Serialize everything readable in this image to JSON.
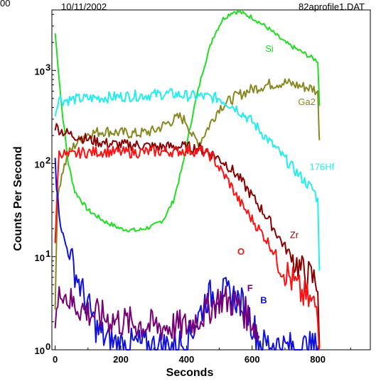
{
  "header": {
    "corner": "00",
    "date": "10/11/2002",
    "filename": "82aprofile1.DAT"
  },
  "chart_data": {
    "type": "line",
    "xlabel": "Seconds",
    "ylabel": "Counts Per Second",
    "xlim": [
      -10,
      960
    ],
    "ylim": [
      0,
      3.65
    ],
    "y_scale": "log",
    "x_ticks": [
      0,
      200,
      400,
      600,
      800
    ],
    "x_tick_labels": [
      "0",
      "200",
      "400",
      "600",
      "800"
    ],
    "y_ticks": [
      0,
      1,
      2,
      3
    ],
    "y_tick_labels_base": [
      "10",
      "10",
      "10",
      "10"
    ],
    "y_tick_labels_exp": [
      "0",
      "1",
      "2",
      "3"
    ],
    "grid": false,
    "series": [
      {
        "name": "Si",
        "color": "#22dd22",
        "label_style": "normal",
        "x": [
          0,
          20,
          40,
          60,
          80,
          100,
          150,
          200,
          250,
          300,
          330,
          360,
          390,
          420,
          450,
          480,
          510,
          540,
          560,
          600,
          650,
          700,
          750,
          800,
          805
        ],
        "y": [
          3.4,
          2.6,
          2.0,
          1.7,
          1.6,
          1.5,
          1.38,
          1.3,
          1.28,
          1.33,
          1.4,
          1.6,
          2.0,
          2.55,
          3.0,
          3.35,
          3.55,
          3.63,
          3.63,
          3.57,
          3.45,
          3.3,
          3.2,
          3.1,
          2.62
        ],
        "label_x": 640,
        "label_y": 3.2
      },
      {
        "name": "Ga2",
        "color": "#888822",
        "label_style": "normal",
        "x": [
          0,
          5,
          10,
          20,
          40,
          60,
          80,
          100,
          150,
          200,
          250,
          300,
          350,
          380,
          400,
          420,
          440,
          460,
          500,
          550,
          600,
          650,
          700,
          750,
          790,
          800,
          805
        ],
        "y": [
          0.5,
          1.4,
          1.7,
          1.9,
          2.1,
          2.2,
          2.28,
          2.32,
          2.35,
          2.33,
          2.32,
          2.35,
          2.45,
          2.5,
          2.45,
          2.28,
          2.23,
          2.35,
          2.6,
          2.72,
          2.8,
          2.85,
          2.87,
          2.83,
          2.8,
          2.75,
          2.25
        ],
        "label_x": 740,
        "label_y": 2.63
      },
      {
        "name": "176Hf",
        "color": "#22eeee",
        "label_style": "normal",
        "x": [
          0,
          10,
          20,
          100,
          200,
          300,
          350,
          400,
          450,
          500,
          550,
          600,
          650,
          700,
          750,
          790,
          800,
          805
        ],
        "y": [
          2.52,
          2.72,
          2.68,
          2.7,
          2.72,
          2.74,
          2.75,
          2.73,
          2.72,
          2.7,
          2.6,
          2.45,
          2.25,
          2.05,
          1.85,
          1.7,
          1.6,
          0.85
        ],
        "label_x": 775,
        "label_y": 1.93
      },
      {
        "name": "Zr",
        "color": "#880000",
        "label_style": "normal",
        "x": [
          0,
          20,
          40,
          60,
          100,
          150,
          200,
          250,
          300,
          350,
          400,
          440,
          480,
          520,
          560,
          600,
          650,
          700,
          750,
          790,
          800,
          805
        ],
        "y": [
          2.4,
          2.35,
          2.32,
          2.3,
          2.26,
          2.22,
          2.2,
          2.2,
          2.18,
          2.18,
          2.18,
          2.16,
          2.1,
          2.0,
          1.85,
          1.65,
          1.4,
          1.1,
          0.85,
          0.75,
          0.72,
          0.03
        ],
        "label_x": 715,
        "label_y": 1.2
      },
      {
        "name": "O",
        "color": "#ff1111",
        "label_style": "bold",
        "x": [
          0,
          10,
          20,
          40,
          80,
          100,
          150,
          200,
          250,
          300,
          350,
          400,
          450,
          480,
          500,
          530,
          560,
          600,
          650,
          700,
          750,
          780,
          800,
          805
        ],
        "y": [
          1.1,
          2.1,
          2.12,
          2.08,
          2.12,
          2.12,
          2.13,
          2.12,
          2.12,
          2.13,
          2.13,
          2.14,
          2.13,
          2.07,
          1.95,
          1.8,
          1.6,
          1.4,
          1.15,
          0.85,
          0.6,
          0.5,
          0.45,
          0.05
        ],
        "label_x": 555,
        "label_y": 1.02
      },
      {
        "name": "B",
        "color": "#1111dd",
        "label_style": "bold",
        "x": [
          0,
          5,
          15,
          25,
          40,
          55,
          70,
          90,
          110,
          130,
          160,
          200,
          250,
          300,
          350,
          400,
          430,
          460,
          490,
          520,
          550,
          580,
          610,
          630,
          660,
          700,
          750,
          800
        ],
        "y": [
          2.1,
          1.7,
          1.4,
          1.2,
          1.05,
          0.9,
          0.75,
          0.55,
          0.38,
          0.2,
          0.1,
          0.05,
          0.06,
          0.03,
          0.05,
          0.08,
          0.3,
          0.55,
          0.62,
          0.6,
          0.56,
          0.45,
          0.2,
          0.05,
          0.08,
          0.02,
          0.02,
          0.02
        ],
        "label_x": 625,
        "label_y": 0.5
      },
      {
        "name": "F",
        "color": "#770077",
        "label_style": "bold",
        "x": [
          0,
          10,
          20,
          30,
          50,
          80,
          100,
          150,
          200,
          250,
          300,
          350,
          400,
          450,
          500,
          550,
          600,
          620
        ],
        "y": [
          0.3,
          0.5,
          0.7,
          0.6,
          0.5,
          0.45,
          0.4,
          0.35,
          0.3,
          0.28,
          0.25,
          0.25,
          0.25,
          0.38,
          0.55,
          0.5,
          0.32,
          0.15
        ],
        "label_x": 585,
        "label_y": 0.63
      }
    ]
  }
}
